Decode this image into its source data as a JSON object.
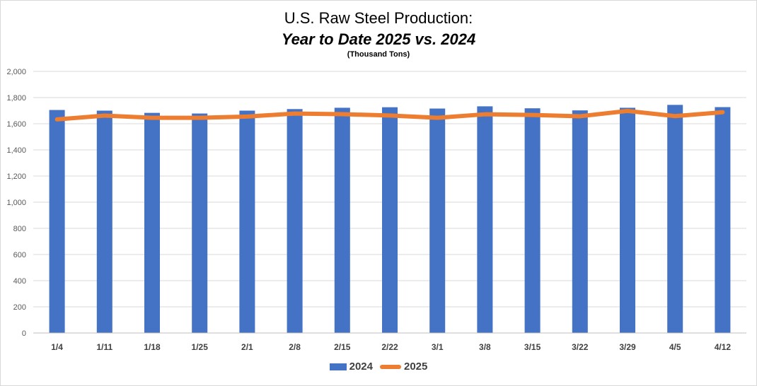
{
  "chart_data": {
    "type": "bar",
    "title": "U.S. Raw Steel Production:",
    "subtitle": "Year to Date 2025 vs. 2024",
    "unit_note": "(Thousand Tons)",
    "categories": [
      "1/4",
      "1/11",
      "1/18",
      "1/25",
      "2/1",
      "2/8",
      "2/15",
      "2/22",
      "3/1",
      "3/8",
      "3/15",
      "3/22",
      "3/29",
      "4/5",
      "4/12"
    ],
    "ylim": [
      0,
      2000
    ],
    "yticks": [
      0,
      200,
      400,
      600,
      800,
      1000,
      1200,
      1400,
      1600,
      1800,
      2000
    ],
    "ytick_labels": [
      "0",
      "200",
      "400",
      "600",
      "800",
      "1,000",
      "1,200",
      "1,400",
      "1,600",
      "1,800",
      "2,000"
    ],
    "grid": true,
    "legend_position": "bottom",
    "series": [
      {
        "name": "2024",
        "type": "bar",
        "color": "#4472c4",
        "values": [
          1705,
          1700,
          1683,
          1678,
          1700,
          1712,
          1722,
          1726,
          1716,
          1733,
          1718,
          1702,
          1722,
          1744,
          1727
        ]
      },
      {
        "name": "2025",
        "type": "line",
        "color": "#ed7d31",
        "values": [
          1633,
          1662,
          1645,
          1645,
          1655,
          1678,
          1673,
          1663,
          1645,
          1672,
          1667,
          1657,
          1698,
          1658,
          1688
        ]
      }
    ]
  }
}
